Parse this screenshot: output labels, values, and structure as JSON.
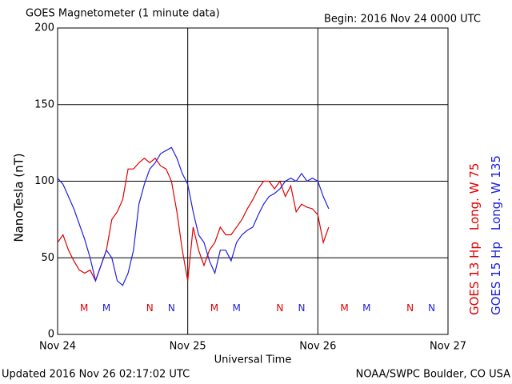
{
  "chart_data": {
    "type": "line",
    "title": "GOES Magnetometer (1 minute data)",
    "subtitle": "Begin:  2016 Nov 24 0000 UTC",
    "y_label": "NanoTesla (nT)",
    "x_label": "Universal Time",
    "footer_left": "Updated 2016 Nov 26 02:17:02 UTC",
    "footer_right": "NOAA/SWPC Boulder, CO USA",
    "xlim": [
      0,
      72
    ],
    "xticks": [
      {
        "value": 0,
        "label": "Nov 24"
      },
      {
        "value": 24,
        "label": "Nov 25"
      },
      {
        "value": 48,
        "label": "Nov 26"
      },
      {
        "value": 72,
        "label": "Nov 27"
      }
    ],
    "ylim": [
      0,
      200
    ],
    "yticks": [
      0,
      50,
      100,
      150,
      200
    ],
    "grid": true,
    "x": [
      0,
      1,
      2,
      3,
      4,
      5,
      6,
      7,
      8,
      9,
      10,
      11,
      12,
      13,
      14,
      15,
      16,
      17,
      18,
      19,
      20,
      21,
      22,
      23,
      24,
      25,
      26,
      27,
      28,
      29,
      30,
      31,
      32,
      33,
      34,
      35,
      36,
      37,
      38,
      39,
      40,
      41,
      42,
      43,
      44,
      45,
      46,
      47,
      48,
      49,
      50
    ],
    "series": [
      {
        "name": "GOES 13 Hp",
        "longitude": "Long. W 75",
        "color": "#e00000",
        "values": [
          60,
          65,
          55,
          48,
          42,
          40,
          42,
          35,
          45,
          55,
          75,
          80,
          88,
          108,
          108,
          112,
          115,
          112,
          115,
          110,
          108,
          100,
          80,
          55,
          35,
          70,
          55,
          45,
          55,
          60,
          70,
          65,
          65,
          70,
          75,
          82,
          88,
          95,
          100,
          100,
          95,
          100,
          90,
          97,
          80,
          85,
          83,
          82,
          78,
          60,
          70
        ]
      },
      {
        "name": "GOES 15 Hp",
        "longitude": "Long. W 135",
        "color": "#2020e0",
        "values": [
          102,
          98,
          90,
          82,
          72,
          62,
          50,
          35,
          45,
          55,
          50,
          35,
          32,
          40,
          55,
          85,
          98,
          108,
          112,
          118,
          120,
          122,
          115,
          105,
          98,
          80,
          65,
          60,
          48,
          40,
          55,
          55,
          48,
          60,
          65,
          68,
          70,
          78,
          85,
          90,
          92,
          95,
          100,
          102,
          100,
          105,
          100,
          102,
          100,
          90,
          82
        ]
      }
    ],
    "annotations": [
      {
        "label": "M",
        "x": 4.9,
        "y": 17,
        "series": 0
      },
      {
        "label": "M",
        "x": 9,
        "y": 17,
        "series": 1
      },
      {
        "label": "N",
        "x": 17,
        "y": 17,
        "series": 0
      },
      {
        "label": "N",
        "x": 21,
        "y": 17,
        "series": 1
      },
      {
        "label": "M",
        "x": 28.9,
        "y": 17,
        "series": 0
      },
      {
        "label": "M",
        "x": 33,
        "y": 17,
        "series": 1
      },
      {
        "label": "N",
        "x": 41,
        "y": 17,
        "series": 0
      },
      {
        "label": "N",
        "x": 45,
        "y": 17,
        "series": 1
      },
      {
        "label": "M",
        "x": 52.9,
        "y": 17,
        "series": 0
      },
      {
        "label": "M",
        "x": 57,
        "y": 17,
        "series": 1
      },
      {
        "label": "N",
        "x": 65,
        "y": 17,
        "series": 0
      },
      {
        "label": "N",
        "x": 69,
        "y": 17,
        "series": 1
      }
    ]
  }
}
